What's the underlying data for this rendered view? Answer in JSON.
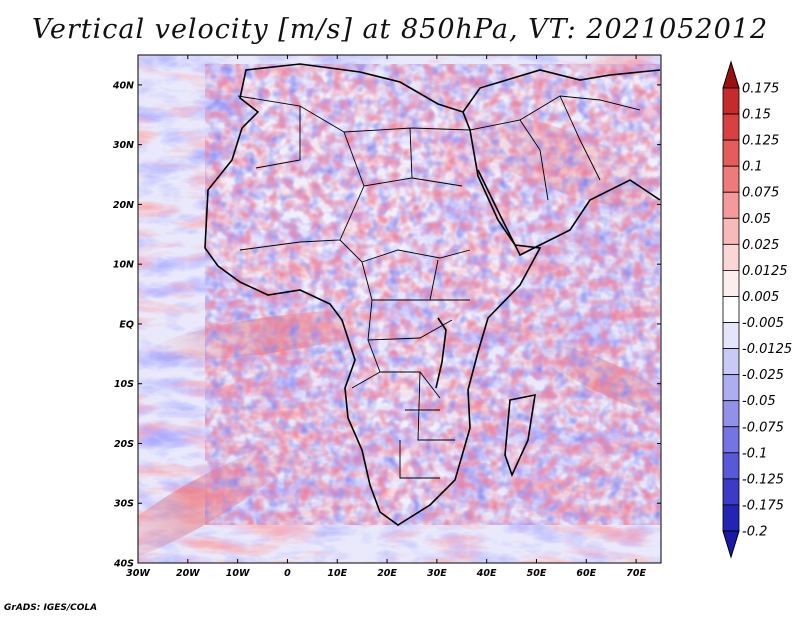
{
  "title": "Vertical velocity [m/s] at 850hPa, VT: 2021052012",
  "credit": "GrADS: IGES/COLA",
  "map": {
    "region": "Africa and Arabian Peninsula",
    "lon_range": [
      -30,
      75
    ],
    "lat_range": [
      -40,
      45
    ],
    "lat_ticks": [
      {
        "value": 40,
        "label": "40N"
      },
      {
        "value": 30,
        "label": "30N"
      },
      {
        "value": 20,
        "label": "20N"
      },
      {
        "value": 10,
        "label": "10N"
      },
      {
        "value": 0,
        "label": "EQ"
      },
      {
        "value": -10,
        "label": "10S"
      },
      {
        "value": -20,
        "label": "20S"
      },
      {
        "value": -30,
        "label": "30S"
      },
      {
        "value": -40,
        "label": "40S"
      }
    ],
    "lon_ticks": [
      {
        "value": -30,
        "label": "30W"
      },
      {
        "value": -20,
        "label": "20W"
      },
      {
        "value": -10,
        "label": "10W"
      },
      {
        "value": 0,
        "label": "0"
      },
      {
        "value": 10,
        "label": "10E"
      },
      {
        "value": 20,
        "label": "20E"
      },
      {
        "value": 30,
        "label": "30E"
      },
      {
        "value": 40,
        "label": "40E"
      },
      {
        "value": 50,
        "label": "50E"
      },
      {
        "value": 60,
        "label": "60E"
      },
      {
        "value": 70,
        "label": "70E"
      }
    ]
  },
  "colorbar": {
    "units": "m/s",
    "levels": [
      {
        "label": "0.175",
        "color": "#b01a1a"
      },
      {
        "label": "0.15",
        "color": "#c52b2b"
      },
      {
        "label": "0.125",
        "color": "#d84141"
      },
      {
        "label": "0.1",
        "color": "#e45c5c"
      },
      {
        "label": "0.075",
        "color": "#ee7a7a"
      },
      {
        "label": "0.05",
        "color": "#f49a9a"
      },
      {
        "label": "0.025",
        "color": "#f8b9b9"
      },
      {
        "label": "0.0125",
        "color": "#fbd6d6"
      },
      {
        "label": "0.005",
        "color": "#fdeeee"
      },
      {
        "label": "-0.005",
        "color": "#ffffff"
      },
      {
        "label": "-0.0125",
        "color": "#e4e4fb"
      },
      {
        "label": "-0.025",
        "color": "#c9c9f6"
      },
      {
        "label": "-0.05",
        "color": "#adadf1"
      },
      {
        "label": "-0.075",
        "color": "#9191ea"
      },
      {
        "label": "-0.1",
        "color": "#7474e2"
      },
      {
        "label": "-0.125",
        "color": "#5858d8"
      },
      {
        "label": "-0.175",
        "color": "#3b3bc8"
      },
      {
        "label": "-0.2",
        "color": "#2424b4"
      }
    ],
    "top_color": "#9a1010",
    "bottom_color": "#1a1aa6"
  }
}
